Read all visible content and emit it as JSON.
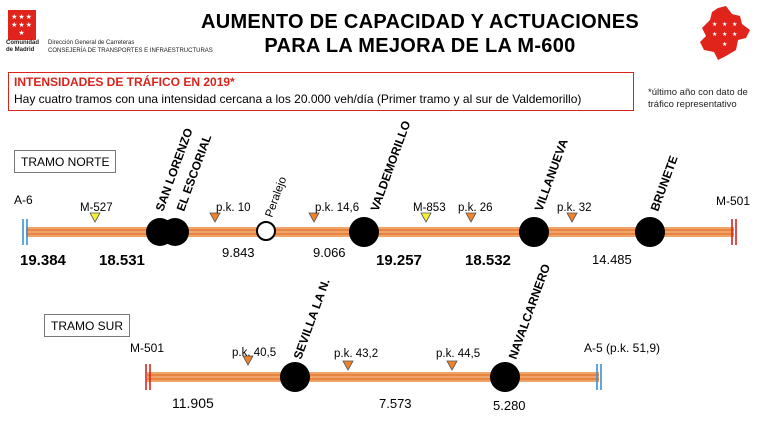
{
  "header": {
    "logo_name": "Comunidad de Madrid",
    "dept_line1": "Dirección General de Carreteras",
    "dept_line2": "CONSEJERÍA DE TRANSPORTES E INFRAESTRUCTURAS",
    "title_line1": "AUMENTO DE CAPACIDAD Y ACTUACIONES",
    "title_line2": "PARA LA MEJORA DE LA M-600"
  },
  "alert": {
    "title": "INTENSIDADES DE TRÁFICO EN 2019*",
    "text": "Hay cuatro tramos con una intensidad cercana a los 20.000 veh/día (Primer tramo y al sur de Valdemorillo)"
  },
  "footnote": "*último año con dato de tráfico representativo",
  "colors": {
    "road": "#f0a46a",
    "road_stripe": "#e0702a",
    "node": "#000000",
    "red_end": "#d9241b",
    "blue_end": "#3a8fd6",
    "yellow_marker": "#f5f036",
    "orange_marker": "#f0822a",
    "alert_border": "#d9241b"
  },
  "tramo_norte": {
    "label": "TRAMO NORTE",
    "start": "A-6",
    "end": "M-501",
    "towns": [
      "SAN LORENZO",
      "EL ESCORIAL",
      "Peralejo",
      "VALDEMORILLO",
      "VILLANUEVA",
      "BRUNETE"
    ],
    "roads": [
      "M-527",
      "M-853"
    ],
    "pks": [
      "p.k. 10",
      "p.k. 14,6",
      "p.k. 26",
      "p.k. 32"
    ],
    "volumes": [
      "19.384",
      "18.531",
      "9.843",
      "9.066",
      "19.257",
      "18.532",
      "14.485"
    ]
  },
  "tramo_sur": {
    "label": "TRAMO SUR",
    "start": "M-501",
    "end": "A-5 (p.k. 51,9)",
    "towns": [
      "SEVILLA LA N.",
      "NAVALCARNERO"
    ],
    "pks": [
      "p.k. 40,5",
      "p.k. 43,2",
      "p.k. 44,5"
    ],
    "volumes": [
      "11.905",
      "7.573",
      "5.280"
    ]
  }
}
